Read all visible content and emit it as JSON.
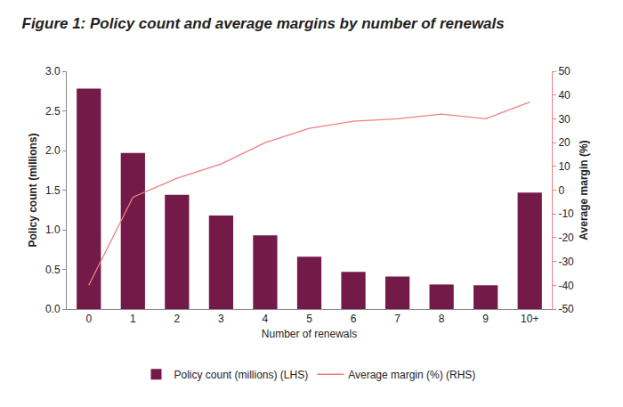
{
  "chart_data": {
    "type": "bar",
    "title": "Figure 1: Policy count and average margins by number of renewals",
    "x_label": "Number of renewals",
    "y_label": "Policy count (millions)",
    "y2_label": "Average margin (%)",
    "categories": [
      "0",
      "1",
      "2",
      "3",
      "4",
      "5",
      "6",
      "7",
      "8",
      "9",
      "10+"
    ],
    "series": [
      {
        "name": "Policy count (millions) (LHS)",
        "type": "bar",
        "color": "#731a48",
        "values": [
          2.78,
          1.97,
          1.44,
          1.18,
          0.93,
          0.66,
          0.47,
          0.41,
          0.31,
          0.3,
          1.47
        ]
      },
      {
        "name": "Average margin (%) (RHS)",
        "type": "line",
        "axis": "y2",
        "color": "#f07f7f",
        "values": [
          -40,
          -3,
          5,
          11,
          20,
          26,
          29,
          30,
          32,
          30,
          37
        ]
      }
    ],
    "ylim": [
      0,
      3
    ],
    "yticks": [
      {
        "value": 0,
        "label": "0.0"
      },
      0.5,
      {
        "value": 1,
        "label": "1.0"
      },
      1.5,
      {
        "value": 2,
        "label": "2.0"
      },
      2.5,
      {
        "value": 3,
        "label": "3.0"
      }
    ],
    "y2lim": [
      -50,
      50
    ],
    "y2ticks": [
      -50,
      -40,
      -30,
      -20,
      -10,
      0,
      10,
      20,
      30,
      40,
      50
    ],
    "grid": false,
    "legend": "bottom"
  }
}
